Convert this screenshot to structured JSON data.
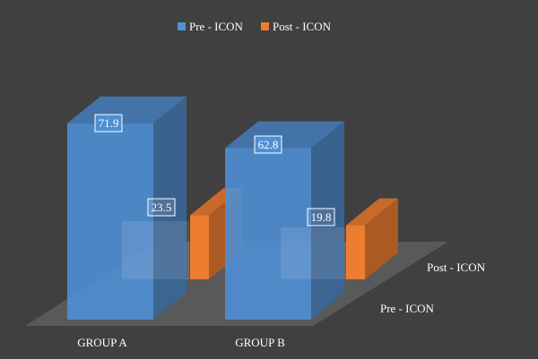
{
  "chart_data": {
    "type": "bar",
    "title": "",
    "categories": [
      "GROUP A",
      "GROUP B"
    ],
    "series": [
      {
        "name": "Pre - ICON",
        "values": [
          71.9,
          62.8
        ],
        "color": "#4f8fd6"
      },
      {
        "name": "Post - ICON",
        "values": [
          23.5,
          19.8
        ],
        "color": "#ed7d31"
      }
    ],
    "ylim": [
      0,
      80
    ],
    "grid": false,
    "legend": "top-center",
    "depth_labels": [
      "Post - ICON",
      "Pre - ICON"
    ],
    "style": "3d",
    "colors": {
      "background": "#404040",
      "floor": "#595959",
      "label_box": "#ffffff"
    }
  }
}
